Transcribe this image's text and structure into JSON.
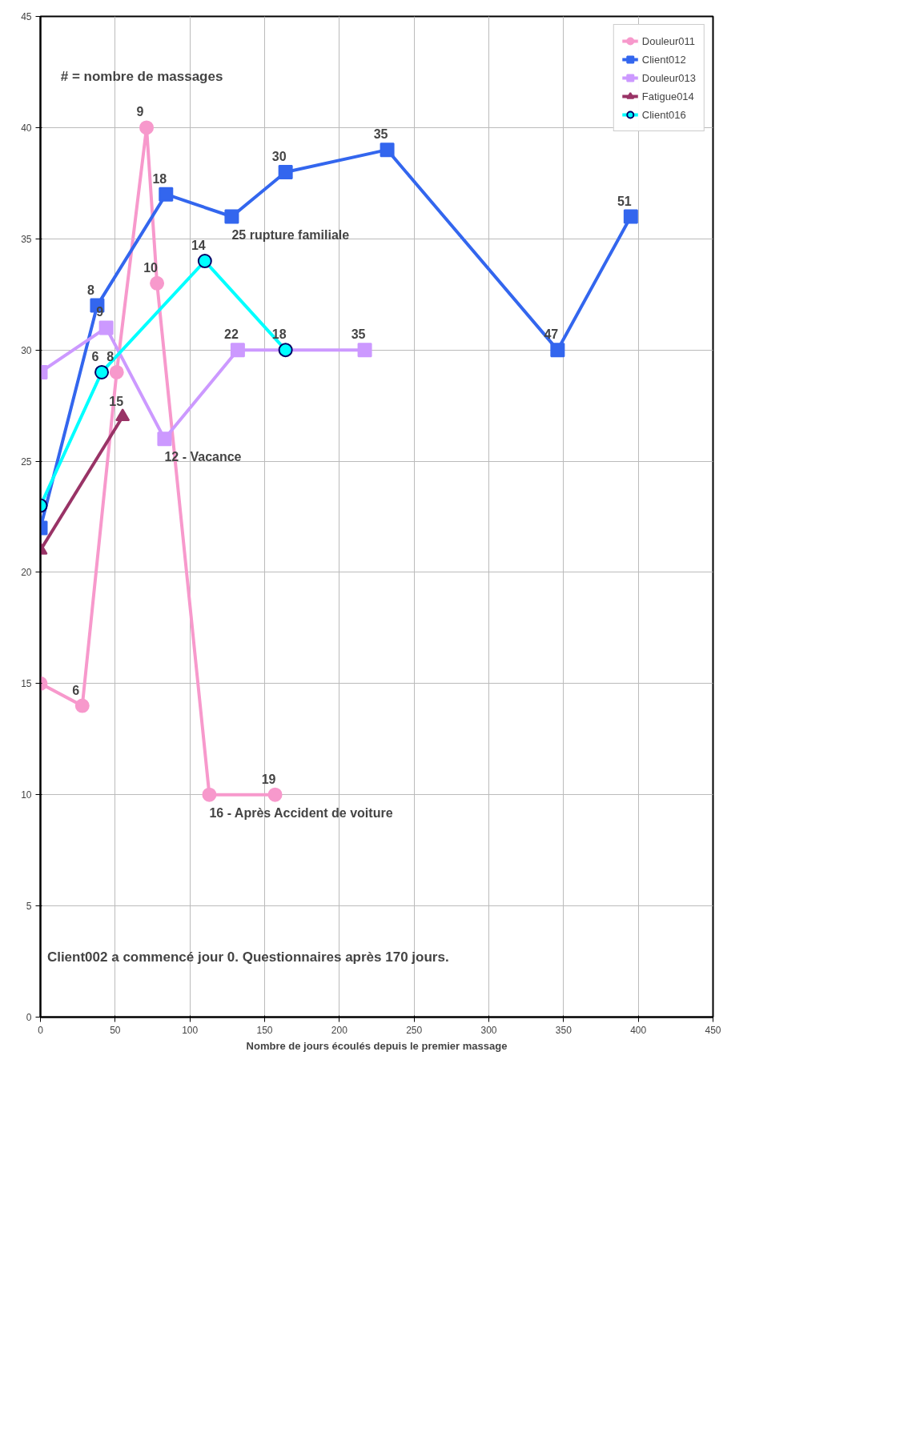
{
  "chart_data": {
    "type": "line",
    "xlabel": "Nombre de jours écoulés depuis le premier massage",
    "xlim": [
      0,
      450
    ],
    "xticks": [
      0,
      50,
      100,
      150,
      200,
      250,
      300,
      350,
      400,
      450
    ],
    "ylim": [
      0,
      45
    ],
    "yticks": [
      0,
      5,
      10,
      15,
      20,
      25,
      30,
      35,
      40,
      45
    ],
    "grid": true,
    "legend": "top right",
    "series": [
      {
        "name": "Douleur011",
        "color": "#f799cc",
        "marker": "circle",
        "x": [
          0,
          28,
          51,
          71,
          78,
          113,
          157
        ],
        "values": [
          15,
          14,
          29,
          40,
          33,
          10,
          10
        ]
      },
      {
        "name": "Client012",
        "color": "#3366ee",
        "marker": "square",
        "x": [
          0,
          38,
          84,
          128,
          164,
          232,
          346,
          395
        ],
        "values": [
          22,
          32,
          37,
          36,
          38,
          39,
          30,
          36
        ]
      },
      {
        "name": "Douleur013",
        "color": "#cc99ff",
        "marker": "square",
        "x": [
          0,
          44,
          83,
          132,
          217
        ],
        "values": [
          29,
          31,
          26,
          30,
          30
        ]
      },
      {
        "name": "Fatigue014",
        "color": "#993366",
        "marker": "triangle",
        "x": [
          0,
          55
        ],
        "values": [
          21,
          27
        ]
      },
      {
        "name": "Client016",
        "color": "#00ffff",
        "marker": "circle",
        "x": [
          0,
          41,
          110,
          164
        ],
        "values": [
          23,
          29,
          34,
          30
        ]
      }
    ],
    "annotations": [
      "# = nombre de massages",
      "Client002 a commencé jour 0. Questionnaires après 170 jours.",
      {
        "text": "6",
        "x": 28,
        "y": 14
      },
      {
        "text": "8",
        "x": 51,
        "y": 29
      },
      {
        "text": "9",
        "x": 71,
        "y": 40
      },
      {
        "text": "10",
        "x": 78,
        "y": 33
      },
      {
        "text": "16 - Après Accident de voiture",
        "x": 113,
        "y": 10
      },
      {
        "text": "19",
        "x": 157,
        "y": 10
      },
      {
        "text": "8",
        "x": 38,
        "y": 32
      },
      {
        "text": "18",
        "x": 84,
        "y": 37
      },
      {
        "text": "25 rupture familiale",
        "x": 128,
        "y": 36
      },
      {
        "text": "30",
        "x": 164,
        "y": 38
      },
      {
        "text": "35",
        "x": 232,
        "y": 39
      },
      {
        "text": "47",
        "x": 346,
        "y": 30
      },
      {
        "text": "51",
        "x": 395,
        "y": 36
      },
      {
        "text": "9",
        "x": 44,
        "y": 31
      },
      {
        "text": "12 - Vacance",
        "x": 83,
        "y": 26
      },
      {
        "text": "22",
        "x": 132,
        "y": 30
      },
      {
        "text": "35",
        "x": 217,
        "y": 30
      },
      {
        "text": "15",
        "x": 55,
        "y": 27
      },
      {
        "text": "6",
        "x": 41,
        "y": 29
      },
      {
        "text": "14",
        "x": 110,
        "y": 34
      },
      {
        "text": "18",
        "x": 164,
        "y": 30
      }
    ]
  }
}
